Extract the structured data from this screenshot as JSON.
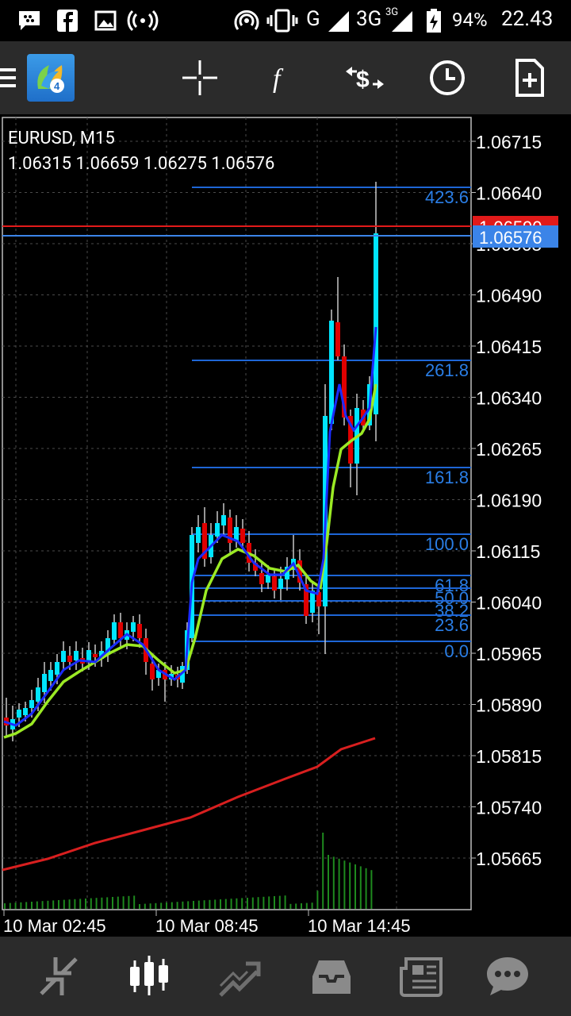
{
  "status_bar": {
    "network_type": "G",
    "network_type_3g": "3G",
    "network_3g_sup": "3G",
    "battery_percent": "94%",
    "time": "22.43"
  },
  "toolbar": {
    "menu_icon": "hamburger-menu-icon",
    "app_icon": "metatrader-4-icon",
    "crosshair_icon": "crosshair-icon",
    "indicators_icon": "function-f-icon",
    "symbol_icon": "dollar-exchange-icon",
    "period_icon": "clock-icon",
    "new_order_icon": "add-document-icon"
  },
  "chart": {
    "symbol_period": "EURUSD, M15",
    "ohlc": "1.06315 1.06659 1.06275 1.06576",
    "price_labels": [
      "1.06715",
      "1.06640",
      "1.06565",
      "1.06490",
      "1.06415",
      "1.06340",
      "1.06265",
      "1.06190",
      "1.06115",
      "1.06040",
      "1.05965",
      "1.05890",
      "1.05815",
      "1.05740",
      "1.05665"
    ],
    "ask_label": "1.06590",
    "bid_label": "1.06576",
    "time_labels": [
      "10 Mar 02:45",
      "10 Mar 08:45",
      "10 Mar 14:45"
    ],
    "fib_levels": [
      {
        "label": "423.6",
        "price": 1.0664
      },
      {
        "label": "261.8",
        "price": 1.06388
      },
      {
        "label": "161.8",
        "price": 1.06232
      },
      {
        "label": "100.0",
        "price": 1.06135
      },
      {
        "label": "61.8",
        "price": 1.06075
      },
      {
        "label": "50.0",
        "price": 1.06057
      },
      {
        "label": "38.2",
        "price": 1.06038
      },
      {
        "label": "23.6",
        "price": 1.06016
      },
      {
        "label": "0.0",
        "price": 1.05979
      }
    ],
    "colors": {
      "bull": "#00e5ff",
      "bear": "#e00000",
      "fib": "#1e66d6",
      "fib_text": "#2a7ee6",
      "ask_line": "#e21a1a",
      "bid_line": "#3b84e8",
      "ma_fast": "#1a2cff",
      "ma_mid": "#9bea24",
      "ma_slow": "#d81f1f",
      "volume": "#1e8a1e",
      "grid": "#4a4a4a"
    }
  },
  "bottom_nav": {
    "items": [
      "quotes-icon",
      "chart-icon",
      "trade-icon",
      "history-icon",
      "news-icon",
      "chat-icon"
    ]
  }
}
